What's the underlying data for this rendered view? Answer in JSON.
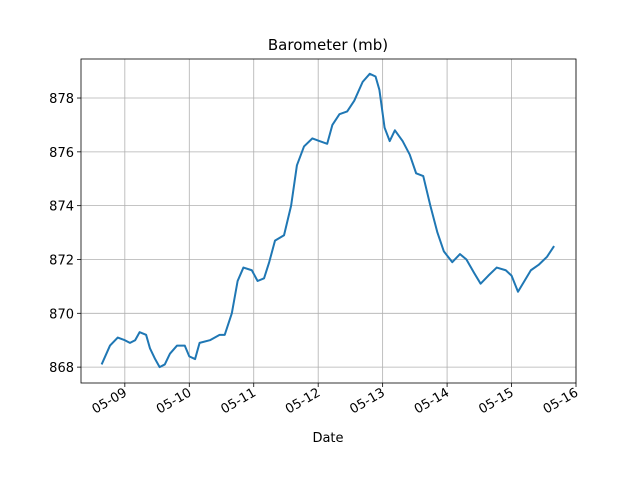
{
  "chart_data": {
    "type": "line",
    "title": "Barometer (mb)",
    "xlabel": "Date",
    "x": [
      8.64,
      8.77,
      8.89,
      9.0,
      9.08,
      9.16,
      9.23,
      9.33,
      9.39,
      9.47,
      9.54,
      9.62,
      9.7,
      9.81,
      9.93,
      10.0,
      10.09,
      10.16,
      10.32,
      10.47,
      10.55,
      10.66,
      10.75,
      10.84,
      10.97,
      11.06,
      11.16,
      11.24,
      11.33,
      11.47,
      11.58,
      11.67,
      11.78,
      11.91,
      12.02,
      12.14,
      12.22,
      12.33,
      12.45,
      12.56,
      12.69,
      12.8,
      12.89,
      12.95,
      13.03,
      13.11,
      13.19,
      13.31,
      13.42,
      13.52,
      13.63,
      13.74,
      13.85,
      13.95,
      14.08,
      14.2,
      14.3,
      14.42,
      14.52,
      14.64,
      14.77,
      14.91,
      15.0,
      15.1,
      15.2,
      15.3,
      15.42,
      15.55,
      15.66
    ],
    "series": [
      {
        "color": "#1f77b4",
        "values": [
          868.1,
          868.8,
          869.1,
          869.0,
          868.9,
          869.0,
          869.3,
          869.2,
          868.7,
          868.3,
          868.0,
          868.1,
          868.5,
          868.8,
          868.8,
          868.4,
          868.3,
          868.9,
          869.0,
          869.2,
          869.2,
          870.0,
          871.2,
          871.7,
          871.6,
          871.2,
          871.3,
          871.9,
          872.7,
          872.9,
          874.0,
          875.5,
          876.2,
          876.5,
          876.4,
          876.3,
          877.0,
          877.4,
          877.5,
          877.9,
          878.6,
          878.9,
          878.8,
          878.3,
          876.9,
          876.4,
          876.8,
          876.4,
          875.9,
          875.2,
          875.1,
          874.0,
          873.0,
          872.3,
          871.9,
          872.2,
          872.0,
          871.5,
          871.1,
          871.4,
          871.7,
          871.6,
          871.4,
          870.8,
          871.2,
          871.6,
          871.8,
          872.1,
          872.5
        ]
      }
    ],
    "xlim": [
      8.32,
      16.0
    ],
    "ylim": [
      867.41,
      879.45
    ],
    "xticks": [
      {
        "value": 9,
        "label": "05-09"
      },
      {
        "value": 10,
        "label": "05-10"
      },
      {
        "value": 11,
        "label": "05-11"
      },
      {
        "value": 12,
        "label": "05-12"
      },
      {
        "value": 13,
        "label": "05-13"
      },
      {
        "value": 14,
        "label": "05-14"
      },
      {
        "value": 15,
        "label": "05-15"
      },
      {
        "value": 16,
        "label": "05-16"
      }
    ],
    "yticks": [
      868,
      870,
      872,
      874,
      876,
      878
    ],
    "grid": true
  }
}
